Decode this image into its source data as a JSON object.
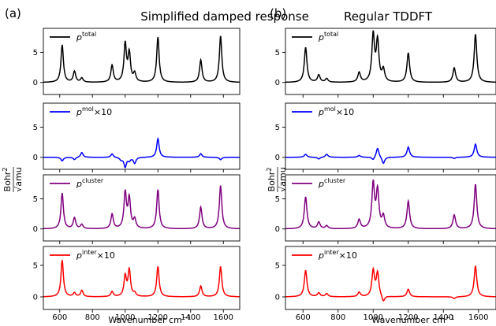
{
  "figure": {
    "left_label": "(a)",
    "left_title": "Simplified damped response",
    "right_label": "(b)",
    "right_title": "Regular TDDFT",
    "xlabel": "Wavenumber cm",
    "xlabel_exp": "−1",
    "ylabel_num": "Bohr",
    "ylabel_num_exp": "2",
    "ylabel_den": "√amu"
  },
  "chart_data": [
    {
      "column": "Simplified damped response",
      "type": "line",
      "xlim": [
        500,
        1700
      ],
      "x_ticks": [
        600,
        800,
        1000,
        1200,
        1400,
        1600
      ],
      "x_tick_labels": [
        "600",
        "800",
        "1000",
        "1200",
        "1400",
        "1600"
      ],
      "panels": [
        {
          "legend_base": "p",
          "legend_sup": "total",
          "legend_suffix": "",
          "color": "#000000",
          "ylim": [
            -2,
            9
          ],
          "yticks": [
            0,
            5
          ],
          "ytick_labels": [
            "0",
            "5"
          ],
          "baseline": 0,
          "peaks": [
            [
              615,
              6.2
            ],
            [
              690,
              1.8
            ],
            [
              735,
              0.7
            ],
            [
              920,
              2.8
            ],
            [
              1000,
              6.3
            ],
            [
              1025,
              4.7
            ],
            [
              1058,
              1.4
            ],
            [
              1200,
              7.5
            ],
            [
              1462,
              3.7
            ],
            [
              1583,
              7.7
            ]
          ]
        },
        {
          "legend_base": "p",
          "legend_sup": "mol",
          "legend_suffix": "×10",
          "color": "#0000ff",
          "ylim": [
            -2,
            9
          ],
          "yticks": [
            0,
            5
          ],
          "ytick_labels": [
            "0",
            "5"
          ],
          "baseline": 0,
          "peaks": [
            [
              615,
              -0.6
            ],
            [
              690,
              -0.4
            ],
            [
              735,
              0.8
            ],
            [
              920,
              0.6
            ],
            [
              975,
              -0.4
            ],
            [
              1000,
              -1.6
            ],
            [
              1025,
              -0.5
            ],
            [
              1058,
              -1.0
            ],
            [
              1200,
              3.1
            ],
            [
              1462,
              0.6
            ],
            [
              1583,
              -0.4
            ]
          ]
        },
        {
          "legend_base": "p",
          "legend_sup": "cluster",
          "legend_suffix": "",
          "color": "#800080",
          "ylim": [
            -2,
            9
          ],
          "yticks": [
            0,
            5
          ],
          "ytick_labels": [
            "0",
            "5"
          ],
          "baseline": 0,
          "peaks": [
            [
              615,
              5.9
            ],
            [
              690,
              1.8
            ],
            [
              735,
              0.7
            ],
            [
              920,
              2.4
            ],
            [
              1000,
              5.9
            ],
            [
              1025,
              4.9
            ],
            [
              1058,
              1.5
            ],
            [
              1200,
              6.5
            ],
            [
              1462,
              3.6
            ],
            [
              1583,
              7.2
            ]
          ]
        },
        {
          "legend_base": "p",
          "legend_sup": "inter",
          "legend_suffix": "×10",
          "color": "#ff0000",
          "ylim": [
            -2,
            8
          ],
          "yticks": [
            0,
            5
          ],
          "ytick_labels": [
            "0",
            "5"
          ],
          "baseline": 0,
          "peaks": [
            [
              615,
              5.8
            ],
            [
              690,
              0.6
            ],
            [
              735,
              1.0
            ],
            [
              920,
              0.8
            ],
            [
              1000,
              3.2
            ],
            [
              1025,
              4.2
            ],
            [
              1058,
              0.5
            ],
            [
              1200,
              4.8
            ],
            [
              1462,
              1.7
            ],
            [
              1583,
              4.8
            ]
          ]
        }
      ]
    },
    {
      "column": "Regular TDDFT",
      "type": "line",
      "xlim": [
        500,
        1700
      ],
      "x_ticks": [
        600,
        800,
        1000,
        1200,
        1400,
        1600
      ],
      "x_tick_labels": [
        "600",
        "800",
        "1000",
        "1200",
        "1400",
        "1600"
      ],
      "panels": [
        {
          "legend_base": "p",
          "legend_sup": "total",
          "legend_suffix": "",
          "color": "#000000",
          "ylim": [
            -2,
            9
          ],
          "yticks": [
            0,
            5
          ],
          "ytick_labels": [
            "0",
            "5"
          ],
          "baseline": 0,
          "peaks": [
            [
              615,
              5.8
            ],
            [
              690,
              1.2
            ],
            [
              735,
              0.6
            ],
            [
              920,
              1.6
            ],
            [
              1000,
              7.8
            ],
            [
              1025,
              6.7
            ],
            [
              1058,
              2.0
            ],
            [
              1200,
              4.9
            ],
            [
              1462,
              2.4
            ],
            [
              1583,
              8.0
            ]
          ]
        },
        {
          "legend_base": "p",
          "legend_sup": "mol",
          "legend_suffix": "×10",
          "color": "#0000ff",
          "ylim": [
            -2,
            9
          ],
          "yticks": [
            0,
            5
          ],
          "ytick_labels": [
            "0",
            "5"
          ],
          "baseline": 0,
          "peaks": [
            [
              615,
              0.5
            ],
            [
              690,
              -0.3
            ],
            [
              735,
              0.5
            ],
            [
              920,
              0.3
            ],
            [
              1000,
              -0.5
            ],
            [
              1025,
              1.6
            ],
            [
              1058,
              -1.1
            ],
            [
              1200,
              1.7
            ],
            [
              1462,
              -0.2
            ],
            [
              1583,
              2.2
            ]
          ]
        },
        {
          "legend_base": "p",
          "legend_sup": "cluster",
          "legend_suffix": "",
          "color": "#800080",
          "ylim": [
            -2,
            9
          ],
          "yticks": [
            0,
            5
          ],
          "ytick_labels": [
            "0",
            "5"
          ],
          "baseline": 0,
          "peaks": [
            [
              615,
              5.3
            ],
            [
              690,
              1.1
            ],
            [
              735,
              0.5
            ],
            [
              920,
              1.5
            ],
            [
              1000,
              7.4
            ],
            [
              1025,
              6.2
            ],
            [
              1058,
              2.0
            ],
            [
              1200,
              4.6
            ],
            [
              1462,
              2.3
            ],
            [
              1583,
              7.4
            ]
          ]
        },
        {
          "legend_base": "p",
          "legend_sup": "inter",
          "legend_suffix": "×10",
          "color": "#ff0000",
          "ylim": [
            -2,
            8
          ],
          "yticks": [
            0,
            5
          ],
          "ytick_labels": [
            "0",
            "5"
          ],
          "baseline": 0,
          "peaks": [
            [
              615,
              4.2
            ],
            [
              690,
              0.6
            ],
            [
              735,
              0.5
            ],
            [
              920,
              0.7
            ],
            [
              1000,
              4.1
            ],
            [
              1025,
              3.7
            ],
            [
              1058,
              -1.0
            ],
            [
              1200,
              1.2
            ],
            [
              1462,
              -0.3
            ],
            [
              1583,
              4.9
            ]
          ]
        }
      ]
    }
  ]
}
